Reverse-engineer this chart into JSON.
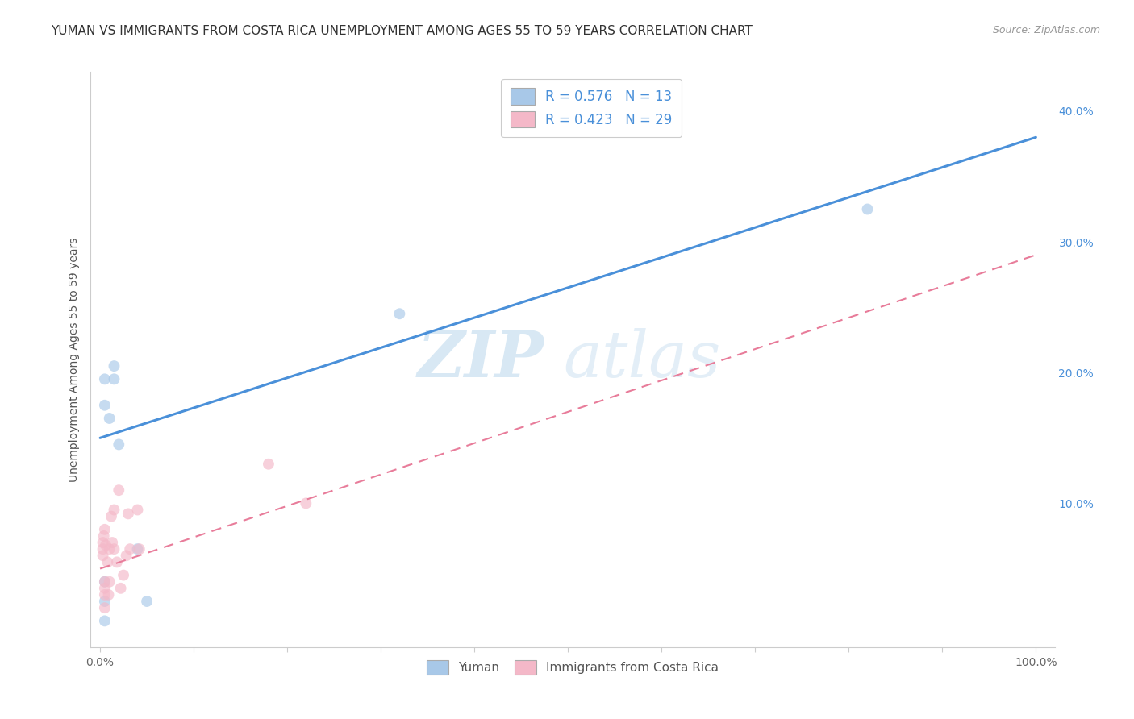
{
  "title": "YUMAN VS IMMIGRANTS FROM COSTA RICA UNEMPLOYMENT AMONG AGES 55 TO 59 YEARS CORRELATION CHART",
  "source": "Source: ZipAtlas.com",
  "ylabel": "Unemployment Among Ages 55 to 59 years",
  "xlabel": "",
  "xlim": [
    -0.01,
    1.02
  ],
  "ylim": [
    -0.01,
    0.43
  ],
  "xticks": [
    0.0,
    0.1,
    0.2,
    0.3,
    0.4,
    0.5,
    0.6,
    0.7,
    0.8,
    0.9,
    1.0
  ],
  "xticklabels": [
    "0.0%",
    "",
    "",
    "",
    "",
    "",
    "",
    "",
    "",
    "",
    "100.0%"
  ],
  "yticks_right": [
    0.0,
    0.1,
    0.2,
    0.3,
    0.4
  ],
  "yticklabels_right": [
    "",
    "10.0%",
    "20.0%",
    "30.0%",
    "40.0%"
  ],
  "blue_line_color": "#4a90d9",
  "pink_line_color": "#e87c9a",
  "blue_dot_color": "#a8c8e8",
  "pink_dot_color": "#f4b8c8",
  "blue_r": "0.576",
  "blue_n": "13",
  "pink_r": "0.423",
  "pink_n": "29",
  "legend_label_blue": "Yuman",
  "legend_label_pink": "Immigrants from Costa Rica",
  "watermark_zip": "ZIP",
  "watermark_atlas": "atlas",
  "blue_scatter_x": [
    0.005,
    0.005,
    0.01,
    0.015,
    0.015,
    0.02,
    0.04,
    0.05,
    0.32,
    0.82,
    0.005,
    0.005,
    0.005
  ],
  "blue_scatter_y": [
    0.175,
    0.195,
    0.165,
    0.205,
    0.195,
    0.145,
    0.065,
    0.025,
    0.245,
    0.325,
    0.04,
    0.01,
    0.025
  ],
  "pink_scatter_x": [
    0.003,
    0.003,
    0.003,
    0.004,
    0.005,
    0.005,
    0.005,
    0.005,
    0.006,
    0.008,
    0.009,
    0.01,
    0.01,
    0.012,
    0.013,
    0.015,
    0.015,
    0.018,
    0.02,
    0.022,
    0.025,
    0.028,
    0.03,
    0.032,
    0.04,
    0.042,
    0.18,
    0.22,
    0.005
  ],
  "pink_scatter_y": [
    0.06,
    0.065,
    0.07,
    0.075,
    0.08,
    0.04,
    0.035,
    0.03,
    0.068,
    0.055,
    0.03,
    0.065,
    0.04,
    0.09,
    0.07,
    0.095,
    0.065,
    0.055,
    0.11,
    0.035,
    0.045,
    0.06,
    0.092,
    0.065,
    0.095,
    0.065,
    0.13,
    0.1,
    0.02
  ],
  "blue_trendline_x": [
    0.0,
    1.0
  ],
  "blue_trendline_y": [
    0.15,
    0.38
  ],
  "pink_trendline_x": [
    0.0,
    1.0
  ],
  "pink_trendline_y": [
    0.05,
    0.29
  ],
  "grid_color": "#d8d8d8",
  "background_color": "#ffffff",
  "title_fontsize": 11,
  "source_fontsize": 9,
  "axis_fontsize": 10,
  "tick_fontsize": 10,
  "dot_size": 100,
  "dot_alpha": 0.65
}
